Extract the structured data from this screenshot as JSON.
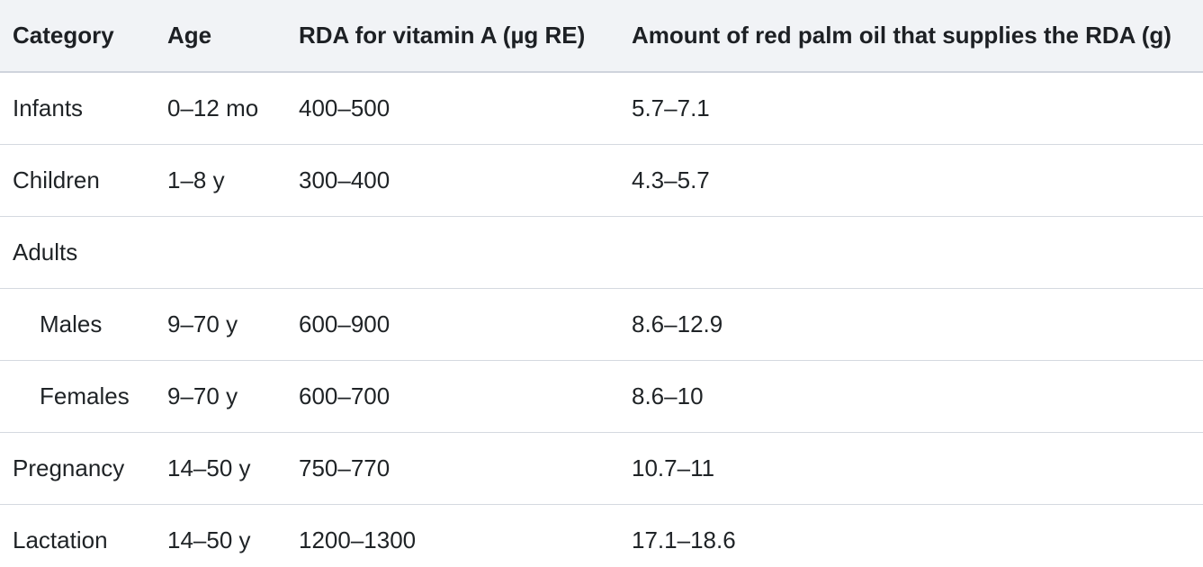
{
  "table": {
    "headers": [
      "Category",
      "Age",
      "RDA for vitamin A (µg RE)",
      "Amount of red palm oil that supplies the RDA (g)"
    ],
    "rows": [
      {
        "category": "Infants",
        "age": "0–12 mo",
        "rda": "400–500",
        "amount": "5.7–7.1",
        "indent": false
      },
      {
        "category": "Children",
        "age": "1–8 y",
        "rda": "300–400",
        "amount": "4.3–5.7",
        "indent": false
      },
      {
        "category": "Adults",
        "age": "",
        "rda": "",
        "amount": "",
        "indent": false
      },
      {
        "category": "Males",
        "age": "9–70 y",
        "rda": "600–900",
        "amount": "8.6–12.9",
        "indent": true
      },
      {
        "category": "Females",
        "age": "9–70 y",
        "rda": "600–700",
        "amount": "8.6–10",
        "indent": true
      },
      {
        "category": "Pregnancy",
        "age": "14–50 y",
        "rda": "750–770",
        "amount": "10.7–11",
        "indent": false
      },
      {
        "category": "Lactation",
        "age": "14–50 y",
        "rda": "1200–1300",
        "amount": "17.1–18.6",
        "indent": false
      }
    ]
  }
}
